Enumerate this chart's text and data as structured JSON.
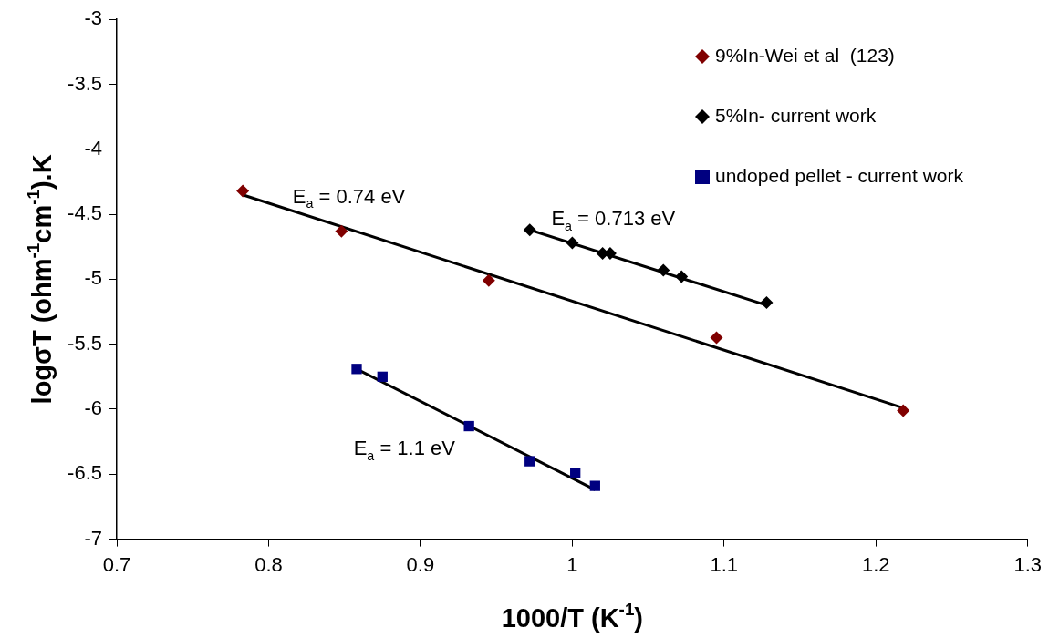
{
  "chart_data": {
    "type": "scatter",
    "xlabel": "1000/T (K$^{-1}$)",
    "ylabel": "logσT (ohm$^{-1}$cm$^{-1}$).K",
    "xlim": [
      0.7,
      1.3
    ],
    "xticks": [
      0.7,
      0.8,
      0.9,
      1,
      1.1,
      1.2,
      1.3
    ],
    "ylim": [
      -7,
      -3
    ],
    "yticks": [
      -7,
      -6.5,
      -6,
      -5.5,
      -5,
      -4.5,
      -4,
      -3.5,
      -3
    ],
    "grid": false,
    "legend": "top right",
    "series": [
      {
        "name": "9%In-Wei et al  (123)",
        "color": "#800000",
        "marker": "diamond",
        "x": [
          0.783,
          0.848,
          0.945,
          1.095,
          1.218
        ],
        "values": [
          -4.32,
          -4.63,
          -5.01,
          -5.45,
          -6.01
        ]
      },
      {
        "name": "5%In- current work",
        "color": "#000000",
        "marker": "diamond",
        "x": [
          0.972,
          1.0,
          1.02,
          1.025,
          1.06,
          1.072,
          1.128
        ],
        "values": [
          -4.62,
          -4.72,
          -4.8,
          -4.8,
          -4.93,
          -4.98,
          -5.18
        ]
      },
      {
        "name": "undoped pellet - current work",
        "color": "#000080",
        "marker": "square",
        "x": [
          0.858,
          0.875,
          0.932,
          0.972,
          1.002,
          1.015
        ],
        "values": [
          -5.69,
          -5.75,
          -6.13,
          -6.4,
          -6.49,
          -6.59
        ]
      },
      {
        "type": "line",
        "color": "#000000",
        "marker": "none",
        "x": [
          0.783,
          1.218
        ],
        "values": [
          -4.35,
          -5.99
        ]
      },
      {
        "type": "line",
        "color": "#000000",
        "marker": "none",
        "x": [
          0.972,
          1.128
        ],
        "values": [
          -4.62,
          -5.2
        ]
      },
      {
        "type": "line",
        "color": "#000000",
        "marker": "none",
        "x": [
          0.858,
          1.015
        ],
        "values": [
          -5.69,
          -6.62
        ]
      }
    ],
    "annotations": [
      "E$_{a}$ = 0.74 eV",
      "E$_{a}$ = 0.713 eV",
      "E$_{a}$ = 1.1 eV"
    ]
  }
}
